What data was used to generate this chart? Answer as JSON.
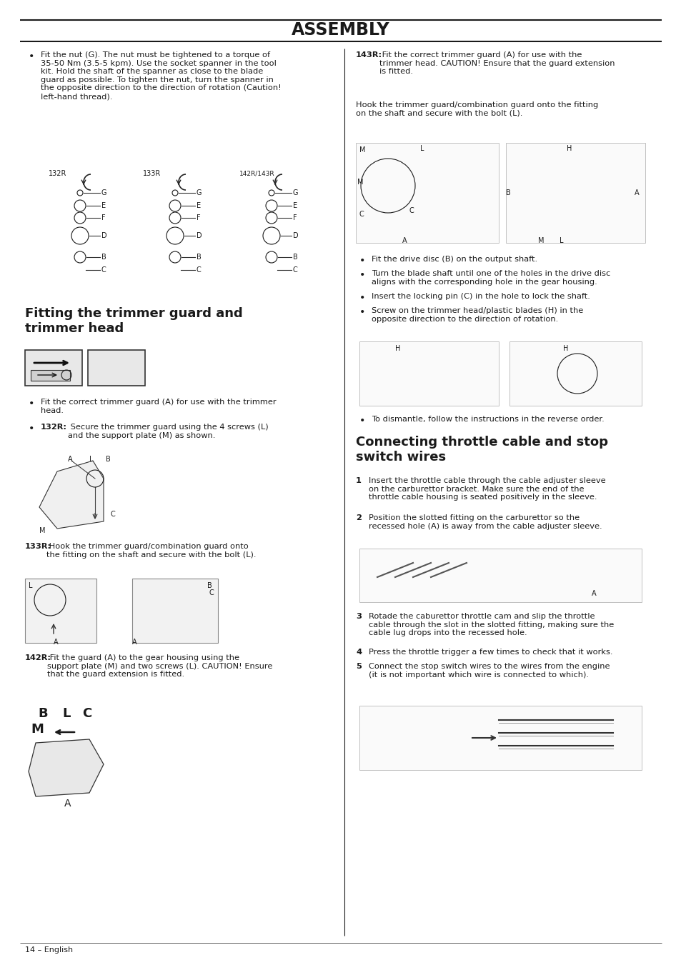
{
  "title": "ASSEMBLY",
  "bg_color": "#ffffff",
  "text_color": "#1a1a1a",
  "page_number": "14 – English",
  "bullet1": "Fit the nut (G). The nut must be tightened to a torque of\n35-50 Nm (3.5-5 kpm). Use the socket spanner in the tool\nkit. Hold the shaft of the spanner as close to the blade\nguard as possible. To tighten the nut, turn the spanner in\nthe opposite direction to the direction of rotation (Caution!\nleft-hand thread).",
  "section1_title": "Fitting the trimmer guard and\ntrimmer head",
  "s1_bullet1": "Fit the correct trimmer guard (A) for use with the trimmer\nhead.",
  "s1_bullet2_bold": "132R:",
  "s1_bullet2_rest": " Secure the trimmer guard using the 4 screws (L)\nand the support plate (M) as shown.",
  "s1_133r_bold": "133R:",
  "s1_133r_rest": " Hook the trimmer guard/combination guard onto\nthe fitting on the shaft and secure with the bolt (L).",
  "s1_142r_bold": "142R:",
  "s1_142r_rest": " Fit the guard (A) to the gear housing using the\nsupport plate (M) and two screws (L). CAUTION! Ensure\nthat the guard extension is fitted.",
  "section2_title": "Connecting throttle cable and stop\nswitch wires",
  "r_143r_bold": "143R:",
  "r_143r_rest": " Fit the correct trimmer guard (A) for use with the\ntrimmer head. CAUTION! Ensure that the guard extension\nis fitted.",
  "r_hook_text": "Hook the trimmer guard/combination guard onto the fitting\non the shaft and secure with the bolt (L).",
  "r_bullet1": "Fit the drive disc (B) on the output shaft.",
  "r_bullet2": "Turn the blade shaft until one of the holes in the drive disc\naligns with the corresponding hole in the gear housing.",
  "r_bullet3": "Insert the locking pin (C) in the hole to lock the shaft.",
  "r_bullet4": "Screw on the trimmer head/plastic blades (H) in the\nopposite direction to the direction of rotation.",
  "r_bullet5": "To dismantle, follow the instructions in the reverse order.",
  "r_num1": "Insert the throttle cable through the cable adjuster sleeve\non the carburettor bracket. Make sure the end of the\nthrottle cable housing is seated positively in the sleeve.",
  "r_num2": "Position the slotted fitting on the carburettor so the\nrecessed hole (A) is away from the cable adjuster sleeve.",
  "r_num3": "Rotade the caburettor throttle cam and slip the throttle\ncable through the slot in the slotted fitting, making sure the\ncable lug drops into the recessed hole.",
  "r_num4": "Press the throttle trigger a few times to check that it works.",
  "r_num5": "Connect the stop switch wires to the wires from the engine\n(it is not important which wire is connected to which).",
  "font_size_title": 17,
  "font_size_section": 13,
  "font_size_body": 8.2,
  "font_size_caption": 8.2,
  "font_size_small": 7.0,
  "font_size_page": 8
}
